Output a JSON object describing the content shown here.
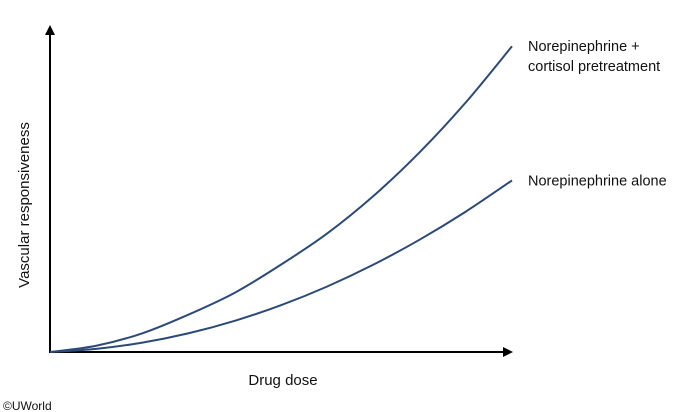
{
  "chart_data": {
    "type": "line",
    "title": "",
    "xlabel": "Drug dose",
    "ylabel": "Vascular responsiveness",
    "xlim": [
      0,
      1
    ],
    "ylim": [
      0,
      1
    ],
    "grid": false,
    "legend": "none",
    "x": [
      0,
      0.1,
      0.2,
      0.3,
      0.4,
      0.5,
      0.6,
      0.7,
      0.8,
      0.9,
      1.0
    ],
    "series": [
      {
        "name": "Norepinephrine + cortisol pretreatment",
        "label_lines": [
          "Norepinephrine +",
          "cortisol pretreatment"
        ],
        "color": "#2b4a7a",
        "values": [
          0,
          0.02,
          0.06,
          0.12,
          0.19,
          0.28,
          0.38,
          0.5,
          0.64,
          0.8,
          0.98
        ]
      },
      {
        "name": "Norepinephrine alone",
        "label_lines": [
          "Norepinephrine alone"
        ],
        "color": "#2b4a7a",
        "values": [
          0,
          0.01,
          0.03,
          0.06,
          0.1,
          0.15,
          0.21,
          0.28,
          0.36,
          0.45,
          0.55
        ]
      }
    ]
  },
  "copyright": "©UWorld"
}
